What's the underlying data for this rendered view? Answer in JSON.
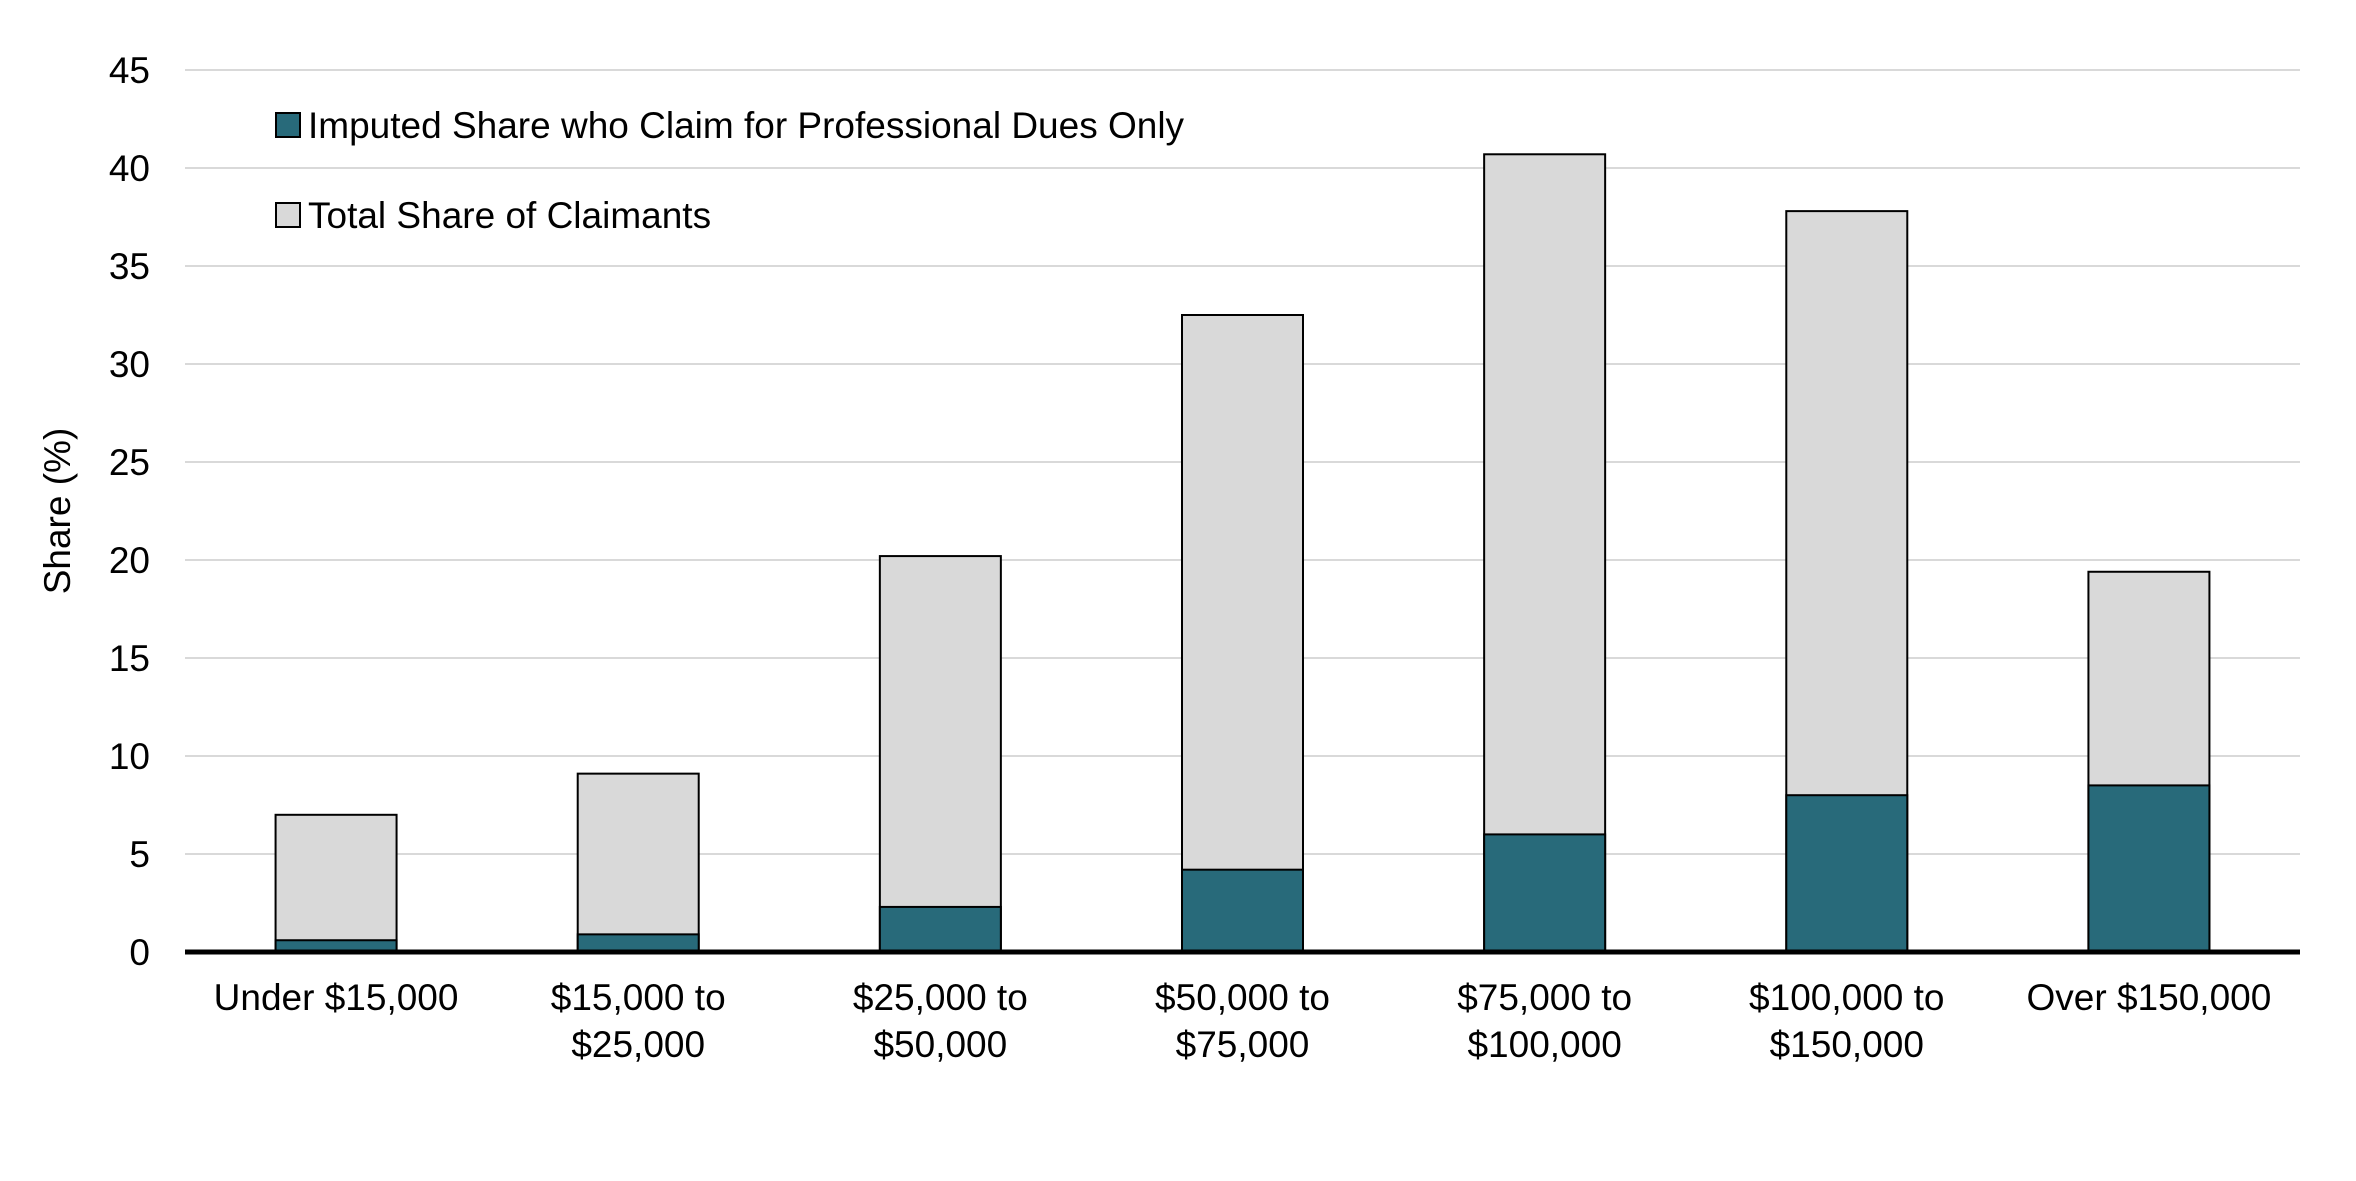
{
  "chart_data": {
    "type": "bar",
    "stacking": "overlap",
    "ylabel": "Share (%)",
    "xlabel": "",
    "ylim": [
      0,
      45
    ],
    "yticks": [
      0,
      5,
      10,
      15,
      20,
      25,
      30,
      35,
      40,
      45
    ],
    "grid": true,
    "legend_position": "top-left",
    "categories": [
      [
        "Under $15,000"
      ],
      [
        "$15,000 to",
        "$25,000"
      ],
      [
        "$25,000 to",
        "$50,000"
      ],
      [
        "$50,000 to",
        "$75,000"
      ],
      [
        "$75,000 to",
        "$100,000"
      ],
      [
        "$100,000 to",
        "$150,000"
      ],
      [
        "Over $150,000"
      ]
    ],
    "series": [
      {
        "name": "Total Share of Claimants",
        "color": "#d9d9d9",
        "values": [
          7.0,
          9.1,
          20.2,
          32.5,
          40.7,
          37.8,
          19.4
        ]
      },
      {
        "name": "Imputed Share who Claim for Professional Dues Only",
        "color": "#286a7a",
        "values": [
          0.6,
          0.9,
          2.3,
          4.2,
          6.0,
          8.0,
          8.5
        ]
      }
    ],
    "legend_order": [
      1,
      0
    ]
  }
}
